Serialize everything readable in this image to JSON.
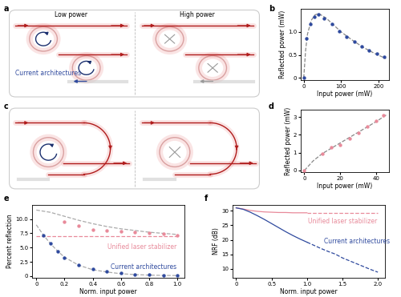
{
  "diagrams": [
    {
      "panel": "a",
      "left": "Low power",
      "right": "High power",
      "label": "Current architectures",
      "label_color": "#2f4a9e"
    },
    {
      "panel": "c"
    }
  ],
  "chart_data": [
    {
      "panel": "b",
      "type": "scatter",
      "x_label": "Input power (mW)",
      "y_label": "Reflected power (mW)",
      "xlim": [
        -8,
        228
      ],
      "xticks": [
        0,
        100,
        200
      ],
      "ylim": [
        -0.05,
        1.5
      ],
      "yticks": [
        0,
        0.5,
        1.0
      ],
      "series": [
        {
          "type": "scatter",
          "color": "#2f4a9e",
          "marker": "o",
          "x": [
            0,
            8,
            18,
            28,
            40,
            55,
            75,
            95,
            115,
            135,
            155,
            175,
            195,
            215
          ],
          "values": [
            0,
            0.85,
            1.18,
            1.33,
            1.38,
            1.3,
            1.18,
            1.02,
            0.9,
            0.79,
            0.69,
            0.6,
            0.52,
            0.45
          ]
        },
        {
          "type": "line",
          "color": "#888888",
          "line_style": "dashed",
          "x": [
            0,
            5,
            10,
            20,
            30,
            40,
            60,
            80,
            100,
            130,
            160,
            190,
            220
          ],
          "values": [
            0,
            0.6,
            0.95,
            1.25,
            1.37,
            1.4,
            1.3,
            1.15,
            1.0,
            0.82,
            0.66,
            0.53,
            0.42
          ]
        }
      ]
    },
    {
      "panel": "d",
      "type": "scatter",
      "x_label": "Input power (mW)",
      "y_label": "Reflected power (mW)",
      "xlim": [
        -2,
        47
      ],
      "xticks": [
        0,
        20,
        40
      ],
      "ylim": [
        -0.1,
        3.4
      ],
      "yticks": [
        0,
        1,
        2,
        3
      ],
      "series": [
        {
          "type": "line",
          "color": "#888888",
          "line_style": "dashed",
          "x": [
            0,
            5,
            10,
            20,
            30,
            40,
            46
          ],
          "values": [
            0,
            0.55,
            0.95,
            1.55,
            2.15,
            2.75,
            3.15
          ]
        },
        {
          "type": "scatter",
          "color": "#e88a9a",
          "marker": "o",
          "x": [
            0,
            10,
            15,
            20,
            25,
            30,
            35,
            40,
            44
          ],
          "values": [
            0,
            0.95,
            1.3,
            1.45,
            1.8,
            2.1,
            2.45,
            2.8,
            3.1
          ]
        }
      ]
    },
    {
      "panel": "e",
      "type": "scatter",
      "x_label": "Norm. input power",
      "y_label": "Percent reflection",
      "xlim": [
        -0.03,
        1.05
      ],
      "xticks": [
        0,
        0.2,
        0.4,
        0.6,
        0.8,
        1.0
      ],
      "ylim": [
        -0.3,
        12.5
      ],
      "yticks": [
        0,
        2.5,
        5.0,
        7.5,
        10.0
      ],
      "annotations": [
        {
          "text": "Unified laser stabilizer",
          "color": "#e88a9a"
        },
        {
          "text": "Current architectures",
          "color": "#2f4a9e"
        }
      ],
      "series": [
        {
          "type": "line",
          "color": "#aaaaaa",
          "line_style": "dashed",
          "x": [
            0,
            0.1,
            0.2,
            0.3,
            0.4,
            0.5,
            0.6,
            0.7,
            0.8,
            0.9,
            1.0
          ],
          "values": [
            11.6,
            11.2,
            10.5,
            9.8,
            9.2,
            8.7,
            8.3,
            8.0,
            7.7,
            7.5,
            7.3
          ]
        },
        {
          "type": "line",
          "color": "#e88a9a",
          "line_style": "dashed",
          "x": [
            0,
            1.0
          ],
          "values": [
            7.0,
            7.0
          ]
        },
        {
          "type": "line",
          "color": "#aaaaaa",
          "line_style": "dashed",
          "x": [
            0,
            0.05,
            0.1,
            0.15,
            0.2,
            0.3,
            0.4,
            0.5,
            0.6,
            0.7,
            0.8,
            0.9,
            1.0
          ],
          "values": [
            9.0,
            7.2,
            5.7,
            4.4,
            3.3,
            1.9,
            1.1,
            0.7,
            0.4,
            0.25,
            0.15,
            0.1,
            0.08
          ]
        },
        {
          "type": "scatter",
          "color": "#e88a9a",
          "marker": "o",
          "x": [
            0.2,
            0.3,
            0.4,
            0.5,
            0.6,
            0.7,
            0.8,
            0.9,
            1.0
          ],
          "values": [
            9.5,
            8.8,
            8.2,
            8.0,
            7.8,
            7.7,
            7.6,
            7.4,
            7.2
          ]
        },
        {
          "type": "scatter",
          "color": "#2f4a9e",
          "marker": "o",
          "x": [
            0.05,
            0.1,
            0.15,
            0.2,
            0.3,
            0.4,
            0.5,
            0.6,
            0.7,
            0.8,
            0.9,
            1.0
          ],
          "values": [
            7.2,
            5.7,
            4.3,
            3.2,
            2.0,
            1.2,
            0.8,
            0.5,
            0.3,
            0.2,
            0.15,
            0.1
          ]
        }
      ]
    },
    {
      "panel": "f",
      "type": "line",
      "x_label": "Norm. input power",
      "y_label": "NRF (dB)",
      "xlim": [
        -0.05,
        2.1
      ],
      "xticks": [
        0,
        0.5,
        1.0,
        1.5,
        2.0
      ],
      "ylim": [
        7,
        32
      ],
      "yticks": [
        10,
        15,
        20,
        25,
        30
      ],
      "annotations": [
        {
          "text": "Unified laser stabilizer",
          "color": "#e88a9a"
        },
        {
          "text": "Current architectures",
          "color": "#2f4a9e"
        }
      ],
      "x": [
        0,
        0.1,
        0.2,
        0.3,
        0.4,
        0.5,
        0.6,
        0.7,
        0.8,
        0.9,
        1.0,
        1.1,
        1.2,
        1.3,
        1.4,
        1.5,
        1.6,
        1.7,
        1.8,
        1.9,
        2.0
      ],
      "series": [
        {
          "color": "#e88a9a",
          "line_style": "solid",
          "values": [
            31.0,
            30.6,
            30.1,
            29.8,
            29.6,
            29.5,
            29.4,
            29.4,
            29.3,
            29.3,
            29.3,
            null,
            null,
            null,
            null,
            null,
            null,
            null,
            null,
            null,
            null
          ]
        },
        {
          "color": "#e88a9a",
          "line_style": "dashed",
          "values": [
            null,
            null,
            null,
            null,
            null,
            null,
            null,
            null,
            null,
            null,
            29.3,
            29.3,
            29.3,
            29.3,
            29.3,
            29.3,
            29.3,
            29.3,
            29.3,
            29.3,
            29.3
          ]
        },
        {
          "color": "#2f4a9e",
          "line_style": "solid",
          "values": [
            31.0,
            30.5,
            29.5,
            28.3,
            27.0,
            25.6,
            24.2,
            22.8,
            21.5,
            20.3,
            19.2,
            null,
            null,
            null,
            null,
            null,
            null,
            null,
            null,
            null,
            null
          ]
        },
        {
          "color": "#2f4a9e",
          "line_style": "dashed",
          "values": [
            null,
            null,
            null,
            null,
            null,
            null,
            null,
            null,
            null,
            null,
            19.2,
            18.1,
            17.0,
            16.0,
            15.1,
            13.8,
            12.8,
            11.8,
            10.8,
            9.8,
            8.9
          ]
        }
      ]
    }
  ]
}
